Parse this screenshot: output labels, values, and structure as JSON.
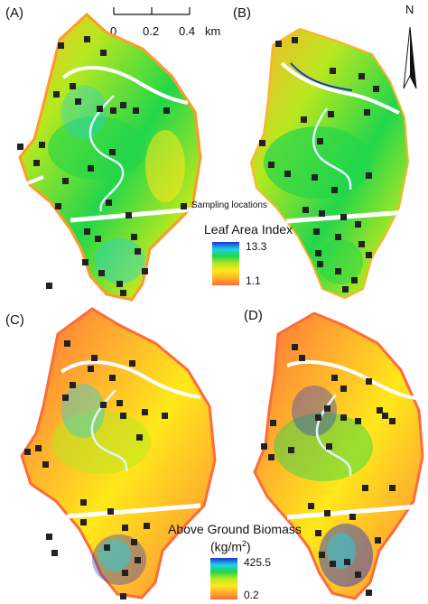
{
  "panels": [
    {
      "label": "(A)",
      "variable": "Leaf Area Index"
    },
    {
      "label": "(B)",
      "variable": "Leaf Area Index"
    },
    {
      "label": "(C)",
      "variable": "Above Ground Biomass"
    },
    {
      "label": "(D)",
      "variable": "Above Ground Biomass"
    }
  ],
  "scale_bar": {
    "ticks": [
      "0",
      "0.2",
      "0.4"
    ],
    "unit": "km"
  },
  "north_arrow": {
    "label": "N"
  },
  "sampling_legend": {
    "label": "Sampling locations"
  },
  "lai_legend": {
    "title": "Leaf Area Index",
    "max": "13.3",
    "min": "1.1",
    "colors": [
      "#1a2fd6",
      "#1fd0e6",
      "#22d64a",
      "#b8e81f",
      "#ffe81a",
      "#ffb02e",
      "#ff6b3a"
    ]
  },
  "agb_legend": {
    "title": "Above Ground Biomass",
    "unit_base": "(kg/m",
    "unit_sup": "2",
    "unit_close": ")",
    "max": "425.5",
    "min": "0.2",
    "colors": [
      "#1a2fd6",
      "#1fd0e6",
      "#22d64a",
      "#b8e81f",
      "#ffe81a",
      "#ffb02e",
      "#ff6b3a"
    ]
  }
}
